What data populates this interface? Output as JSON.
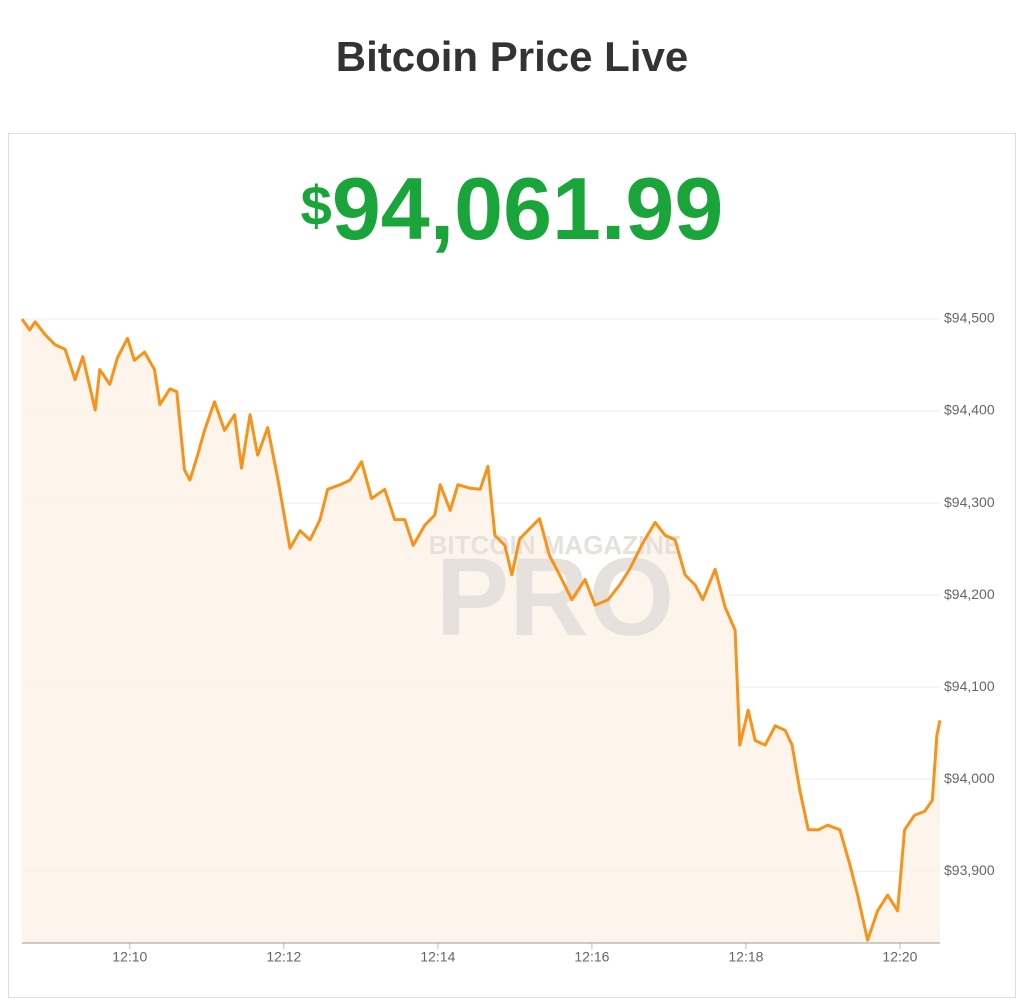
{
  "header": {
    "title": "Bitcoin Price Live"
  },
  "price": {
    "symbol": "$",
    "value": "94,061.99"
  },
  "watermark": {
    "small": "BITCOIN MAGAZINE",
    "large": "PRO"
  },
  "chart_data": {
    "type": "line",
    "color": "#f7931a",
    "area_color": "#fdf3e7",
    "grid": true,
    "x": [
      728.6,
      728.7,
      728.77,
      728.9,
      729.03,
      729.16,
      729.29,
      729.39,
      729.55,
      729.61,
      729.74,
      729.84,
      729.97,
      730.06,
      730.19,
      730.32,
      730.39,
      730.52,
      730.61,
      730.71,
      730.78,
      730.88,
      730.97,
      731.1,
      731.23,
      731.36,
      731.45,
      731.56,
      731.66,
      731.79,
      731.92,
      732.08,
      732.21,
      732.34,
      732.47,
      732.57,
      732.73,
      732.86,
      733.01,
      733.14,
      733.31,
      733.44,
      733.57,
      733.68,
      733.83,
      733.96,
      734.03,
      734.16,
      734.26,
      734.42,
      734.55,
      734.65,
      734.74,
      734.87,
      734.96,
      735.06,
      735.19,
      735.32,
      735.45,
      735.58,
      735.74,
      735.91,
      736.04,
      736.21,
      736.36,
      736.49,
      736.65,
      736.82,
      736.95,
      737.08,
      737.21,
      737.34,
      737.44,
      737.6,
      737.73,
      737.86,
      737.92,
      738.03,
      738.12,
      738.25,
      738.38,
      738.51,
      738.6,
      738.7,
      738.81,
      738.94,
      739.06,
      739.22,
      739.35,
      739.45,
      739.58,
      739.71,
      739.84,
      739.97,
      740.06,
      740.19,
      740.32,
      740.42,
      740.48,
      740.52
    ],
    "values": [
      94500,
      94488,
      94497,
      94483,
      94472,
      94467,
      94434,
      94459,
      94401,
      94445,
      94429,
      94458,
      94479,
      94455,
      94464,
      94445,
      94407,
      94424,
      94421,
      94336,
      94325,
      94352,
      94379,
      94410,
      94379,
      94396,
      94338,
      94396,
      94352,
      94382,
      94327,
      94251,
      94270,
      94260,
      94282,
      94315,
      94320,
      94325,
      94345,
      94305,
      94315,
      94282,
      94282,
      94254,
      94276,
      94287,
      94320,
      94292,
      94320,
      94316,
      94315,
      94340,
      94265,
      94254,
      94222,
      94261,
      94272,
      94283,
      94243,
      94222,
      94195,
      94217,
      94189,
      94195,
      94211,
      94228,
      94255,
      94279,
      94265,
      94260,
      94222,
      94211,
      94195,
      94228,
      94187,
      94162,
      94037,
      94075,
      94042,
      94037,
      94058,
      94053,
      94037,
      93988,
      93945,
      93945,
      93950,
      93945,
      93907,
      93874,
      93825,
      93857,
      93874,
      93857,
      93945,
      93961,
      93965,
      93977,
      94048,
      94064
    ],
    "xlim": [
      728.6,
      740.52
    ],
    "xticks": [
      {
        "value": 730,
        "label": "12:10"
      },
      {
        "value": 732,
        "label": "12:12"
      },
      {
        "value": 734,
        "label": "12:14"
      },
      {
        "value": 736,
        "label": "12:16"
      },
      {
        "value": 738,
        "label": "12:18"
      },
      {
        "value": 740,
        "label": "12:20"
      }
    ],
    "ylim": [
      93822,
      94500
    ],
    "yticks": [
      {
        "value": 93900,
        "label": "$93,900"
      },
      {
        "value": 94000,
        "label": "$94,000"
      },
      {
        "value": 94100,
        "label": "$94,100"
      },
      {
        "value": 94200,
        "label": "$94,200"
      },
      {
        "value": 94300,
        "label": "$94,300"
      },
      {
        "value": 94400,
        "label": "$94,400"
      },
      {
        "value": 94500,
        "label": "$94,500"
      }
    ]
  }
}
